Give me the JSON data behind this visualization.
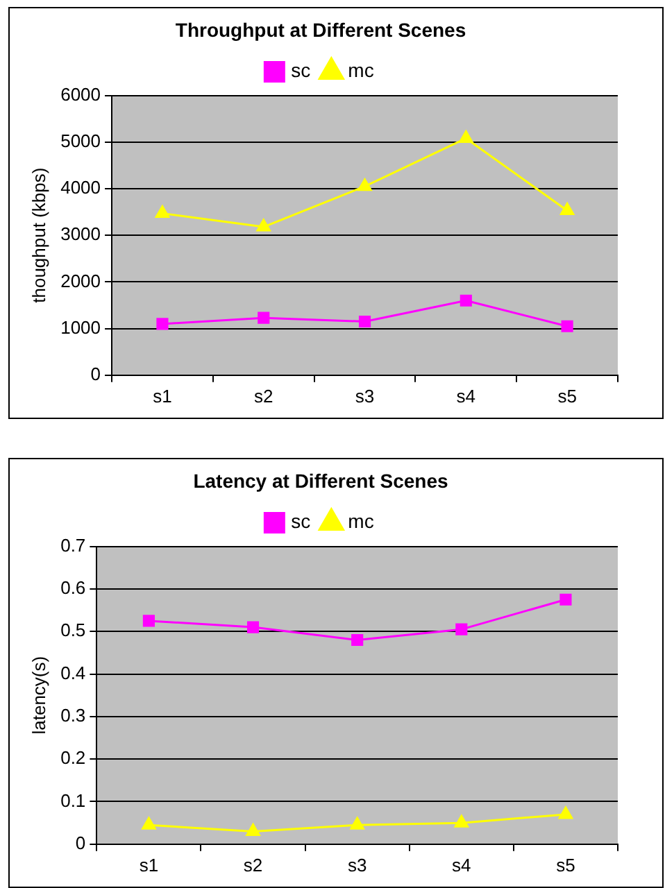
{
  "chart_data": [
    {
      "type": "line",
      "title": "Throughput at Different Scenes",
      "ylabel": "thoughput (kbps)",
      "categories": [
        "s1",
        "s2",
        "s3",
        "s4",
        "s5"
      ],
      "series": [
        {
          "name": "sc",
          "color": "#ff00ff",
          "marker": "square",
          "values": [
            1100,
            1230,
            1150,
            1600,
            1050
          ]
        },
        {
          "name": "mc",
          "color": "#ffff00",
          "marker": "triangle",
          "values": [
            3470,
            3180,
            4050,
            5080,
            3530
          ]
        }
      ],
      "ylim": [
        0,
        6000
      ],
      "yticks": [
        0,
        1000,
        2000,
        3000,
        4000,
        5000,
        6000
      ],
      "grid": "y",
      "legend": "top"
    },
    {
      "type": "line",
      "title": "Latency at Different Scenes",
      "ylabel": "latency(s)",
      "categories": [
        "s1",
        "s2",
        "s3",
        "s4",
        "s5"
      ],
      "series": [
        {
          "name": "sc",
          "color": "#ff00ff",
          "marker": "square",
          "values": [
            0.525,
            0.51,
            0.48,
            0.505,
            0.575
          ]
        },
        {
          "name": "mc",
          "color": "#ffff00",
          "marker": "triangle",
          "values": [
            0.045,
            0.03,
            0.045,
            0.05,
            0.07
          ]
        }
      ],
      "ylim": [
        0,
        0.7
      ],
      "yticks": [
        0,
        0.1,
        0.2,
        0.3,
        0.4,
        0.5,
        0.6,
        0.7
      ],
      "grid": "y",
      "legend": "top"
    }
  ]
}
